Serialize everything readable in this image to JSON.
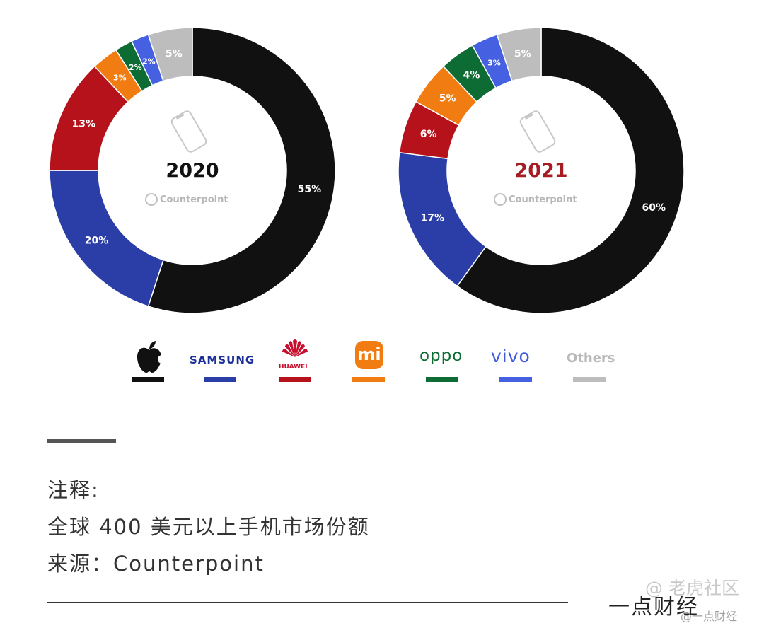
{
  "chart_data": [
    {
      "type": "pie",
      "center_label": "2020",
      "center_label_color": "#111111",
      "watermark": "Counterpoint",
      "categories": [
        "Apple",
        "Samsung",
        "Huawei",
        "Xiaomi",
        "OPPO",
        "vivo",
        "Others"
      ],
      "values": [
        55,
        20,
        13,
        3,
        2,
        2,
        5
      ],
      "labels": [
        "55%",
        "20%",
        "13%",
        "3%",
        "2%",
        "2%",
        "5%"
      ]
    },
    {
      "type": "pie",
      "center_label": "2021",
      "center_label_color": "#a51c22",
      "watermark": "Counterpoint",
      "categories": [
        "Apple",
        "Samsung",
        "Huawei",
        "Xiaomi",
        "OPPO",
        "vivo",
        "Others"
      ],
      "values": [
        60,
        17,
        6,
        5,
        4,
        3,
        5
      ],
      "labels": [
        "60%",
        "17%",
        "6%",
        "5%",
        "4%",
        "3%",
        "5%"
      ]
    }
  ],
  "legend": [
    {
      "key": "apple",
      "text": "",
      "color": "#111111"
    },
    {
      "key": "samsung",
      "text": "SAMSUNG",
      "color": "#2b3ea8"
    },
    {
      "key": "huawei",
      "text": "HUAWEI",
      "color": "#b5121b"
    },
    {
      "key": "xiaomi",
      "text": "mi",
      "color": "#f07c12"
    },
    {
      "key": "oppo",
      "text": "oppo",
      "color": "#0d6b34"
    },
    {
      "key": "vivo",
      "text": "vivo",
      "color": "#4560e0"
    },
    {
      "key": "others",
      "text": "Others",
      "color": "#bdbdbd"
    }
  ],
  "notes": {
    "line1": "注释:",
    "line2": "全球 400 美元以上手机市场份额",
    "line3": "来源：Counterpoint"
  },
  "footer": {
    "brand": "一点财经",
    "watermark_main": "@ 老虎社区",
    "watermark_sub": "@一点财经"
  }
}
